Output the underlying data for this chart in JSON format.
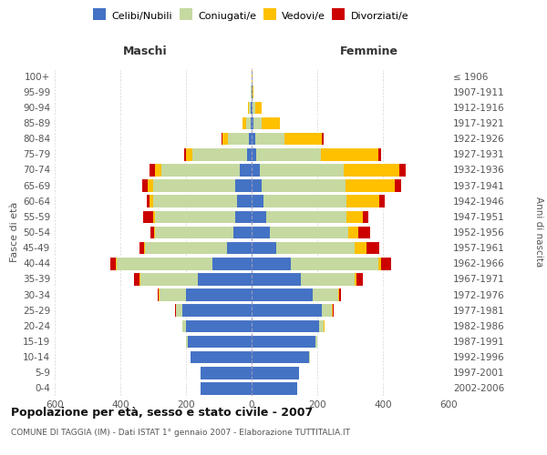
{
  "age_groups": [
    "0-4",
    "5-9",
    "10-14",
    "15-19",
    "20-24",
    "25-29",
    "30-34",
    "35-39",
    "40-44",
    "45-49",
    "50-54",
    "55-59",
    "60-64",
    "65-69",
    "70-74",
    "75-79",
    "80-84",
    "85-89",
    "90-94",
    "95-99",
    "100+"
  ],
  "birth_years": [
    "2002-2006",
    "1997-2001",
    "1992-1996",
    "1987-1991",
    "1982-1986",
    "1977-1981",
    "1972-1976",
    "1967-1971",
    "1962-1966",
    "1957-1961",
    "1952-1956",
    "1947-1951",
    "1942-1946",
    "1937-1941",
    "1932-1936",
    "1927-1931",
    "1922-1926",
    "1917-1921",
    "1912-1916",
    "1907-1911",
    "≤ 1906"
  ],
  "male": {
    "celibi": [
      155,
      155,
      185,
      195,
      200,
      210,
      200,
      165,
      120,
      75,
      55,
      50,
      45,
      50,
      35,
      15,
      8,
      3,
      2,
      1,
      1
    ],
    "coniugati": [
      0,
      0,
      2,
      5,
      10,
      20,
      80,
      175,
      290,
      250,
      240,
      245,
      255,
      250,
      240,
      165,
      65,
      15,
      5,
      1,
      0
    ],
    "vedovi": [
      0,
      0,
      0,
      0,
      1,
      1,
      2,
      2,
      5,
      2,
      3,
      5,
      10,
      18,
      20,
      20,
      15,
      10,
      3,
      0,
      0
    ],
    "divorziati": [
      0,
      0,
      0,
      0,
      0,
      2,
      5,
      15,
      15,
      15,
      10,
      30,
      10,
      15,
      15,
      5,
      3,
      1,
      0,
      0,
      0
    ]
  },
  "female": {
    "nubili": [
      140,
      145,
      175,
      195,
      205,
      215,
      185,
      150,
      120,
      75,
      55,
      45,
      35,
      30,
      25,
      15,
      10,
      5,
      3,
      2,
      1
    ],
    "coniugate": [
      0,
      0,
      2,
      5,
      15,
      30,
      80,
      165,
      265,
      240,
      240,
      245,
      255,
      255,
      255,
      195,
      90,
      25,
      8,
      1,
      0
    ],
    "vedove": [
      0,
      0,
      0,
      0,
      1,
      2,
      3,
      5,
      10,
      35,
      30,
      50,
      100,
      150,
      170,
      175,
      115,
      55,
      20,
      3,
      1
    ],
    "divorziate": [
      0,
      0,
      0,
      0,
      1,
      2,
      5,
      20,
      30,
      40,
      35,
      15,
      15,
      20,
      20,
      10,
      5,
      1,
      0,
      0,
      0
    ]
  },
  "colors": {
    "celibi": "#4472c4",
    "coniugati": "#c5d9a0",
    "vedovi": "#ffc000",
    "divorziati": "#cc0000"
  },
  "title": "Popolazione per età, sesso e stato civile - 2007",
  "subtitle": "COMUNE DI TAGGIA (IM) - Dati ISTAT 1° gennaio 2007 - Elaborazione TUTTITALIA.IT",
  "xlabel_left": "Maschi",
  "xlabel_right": "Femmine",
  "ylabel_left": "Fasce di età",
  "ylabel_right": "Anni di nascita",
  "xlim": 600,
  "legend_labels": [
    "Celibi/Nubili",
    "Coniugati/e",
    "Vedovi/e",
    "Divorziati/e"
  ],
  "bg_color": "#ffffff",
  "grid_color": "#cccccc"
}
